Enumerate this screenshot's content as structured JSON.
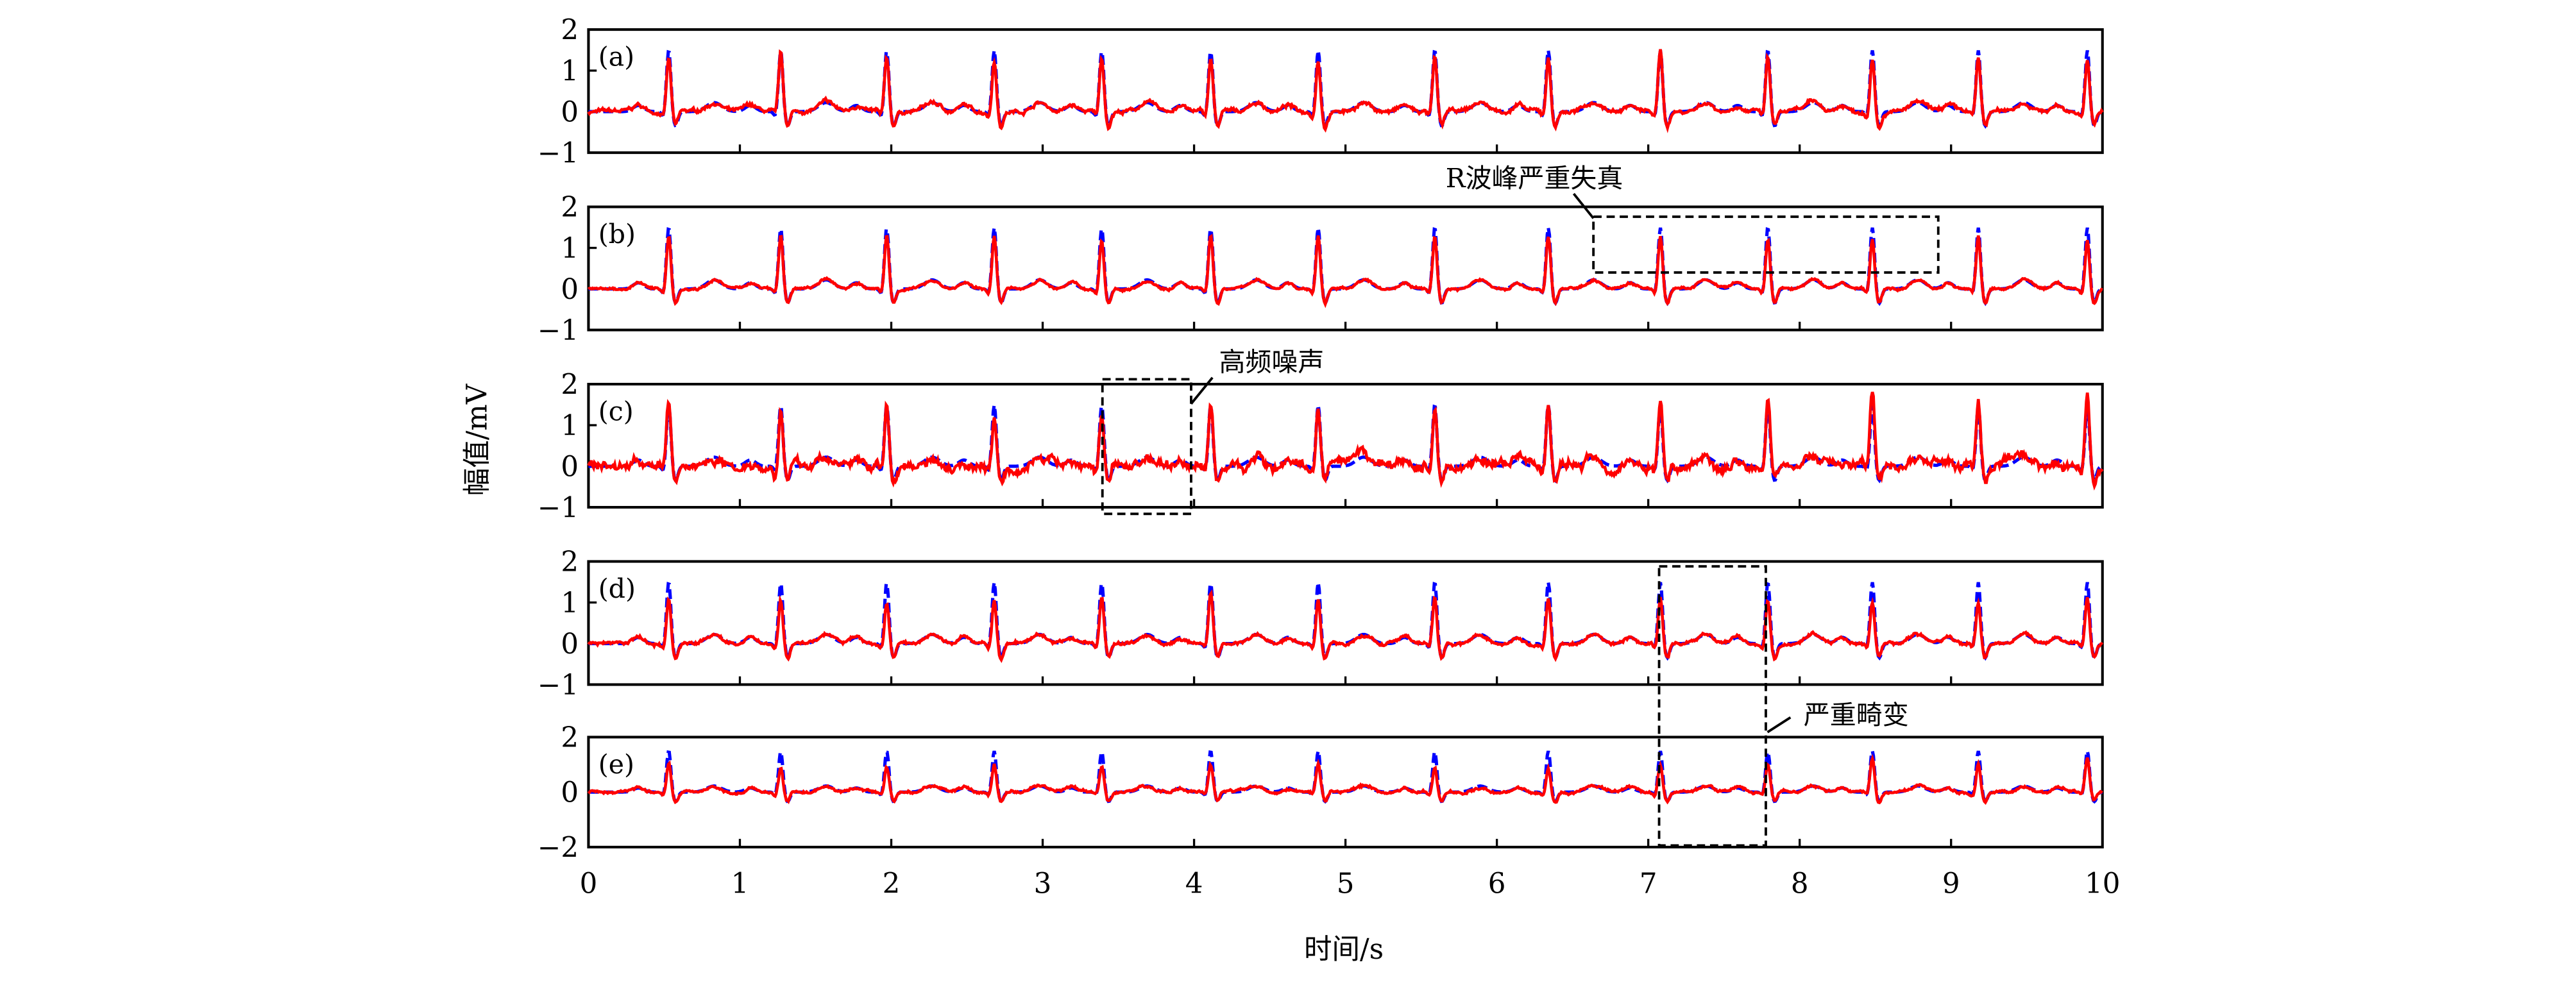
{
  "chart_data": {
    "type": "line",
    "xlabel": "时间/s",
    "ylabel": "幅值/mV",
    "xlim": [
      0,
      10
    ],
    "xticks": [
      "0",
      "1",
      "2",
      "3",
      "4",
      "5",
      "6",
      "7",
      "8",
      "9",
      "10"
    ],
    "grid": false,
    "series_styles": [
      {
        "key": "reference",
        "color": "#0000ff",
        "style": "dashed"
      },
      {
        "key": "reconstructed",
        "color": "#ff0000",
        "style": "solid"
      }
    ],
    "beat_times": [
      0.53,
      1.27,
      1.97,
      2.68,
      3.39,
      4.11,
      4.82,
      5.59,
      6.34,
      7.08,
      7.79,
      8.48,
      9.18,
      9.9
    ],
    "panels": [
      {
        "label": "(a)",
        "ylim": [
          -1,
          2
        ],
        "yticks": [
          "2",
          "1",
          "0",
          "−1"
        ],
        "reference_peak": 1.5,
        "reconstructed_peak": [
          1.3,
          1.4,
          1.3,
          1.3,
          1.3,
          1.3,
          1.3,
          1.3,
          1.3,
          1.5,
          1.3,
          1.4,
          1.3,
          1.3
        ],
        "noise": 0.05
      },
      {
        "label": "(b)",
        "ylim": [
          -1,
          2
        ],
        "yticks": [
          "2",
          "1",
          "0",
          "−1"
        ],
        "reference_peak": 1.5,
        "reconstructed_peak": [
          1.3,
          1.3,
          1.3,
          1.3,
          1.2,
          1.3,
          1.3,
          1.3,
          1.3,
          1.3,
          1.2,
          1.2,
          1.3,
          1.2
        ],
        "noise": 0.03
      },
      {
        "label": "(c)",
        "ylim": [
          -1,
          2
        ],
        "yticks": [
          "2",
          "1",
          "0",
          "−1"
        ],
        "reference_peak": 1.5,
        "reconstructed_peak": [
          1.5,
          1.5,
          1.4,
          1.3,
          1.3,
          1.5,
          1.4,
          1.4,
          1.5,
          1.6,
          1.6,
          1.8,
          1.6,
          1.8
        ],
        "noise": 0.12
      },
      {
        "label": "(d)",
        "ylim": [
          -1,
          2
        ],
        "yticks": [
          "2",
          "1",
          "0",
          "−1"
        ],
        "reference_peak": 1.5,
        "reconstructed_peak": [
          1.1,
          1.1,
          1.0,
          1.1,
          1.1,
          1.2,
          1.1,
          1.1,
          1.1,
          1.1,
          1.1,
          1.0,
          1.0,
          1.1
        ],
        "noise": 0.04
      },
      {
        "label": "(e)",
        "ylim": [
          -2,
          2
        ],
        "yticks": [
          "2",
          "0",
          "−2"
        ],
        "reference_peak": 1.5,
        "reconstructed_peak": [
          1.1,
          0.9,
          0.9,
          1.0,
          0.9,
          1.0,
          1.0,
          0.9,
          0.9,
          1.0,
          1.0,
          1.2,
          1.1,
          1.2
        ],
        "noise": 0.05
      }
    ],
    "annotations": [
      {
        "text": "R波峰严重失真",
        "panel": "(b)",
        "x_range": [
          6.65,
          8.9
        ]
      },
      {
        "text": "高频噪声",
        "panel": "(c)",
        "x_range": [
          3.4,
          3.98
        ]
      },
      {
        "text": "严重畸变",
        "panel": "(d)-(e)",
        "x_range": [
          7.1,
          7.8
        ]
      }
    ]
  }
}
